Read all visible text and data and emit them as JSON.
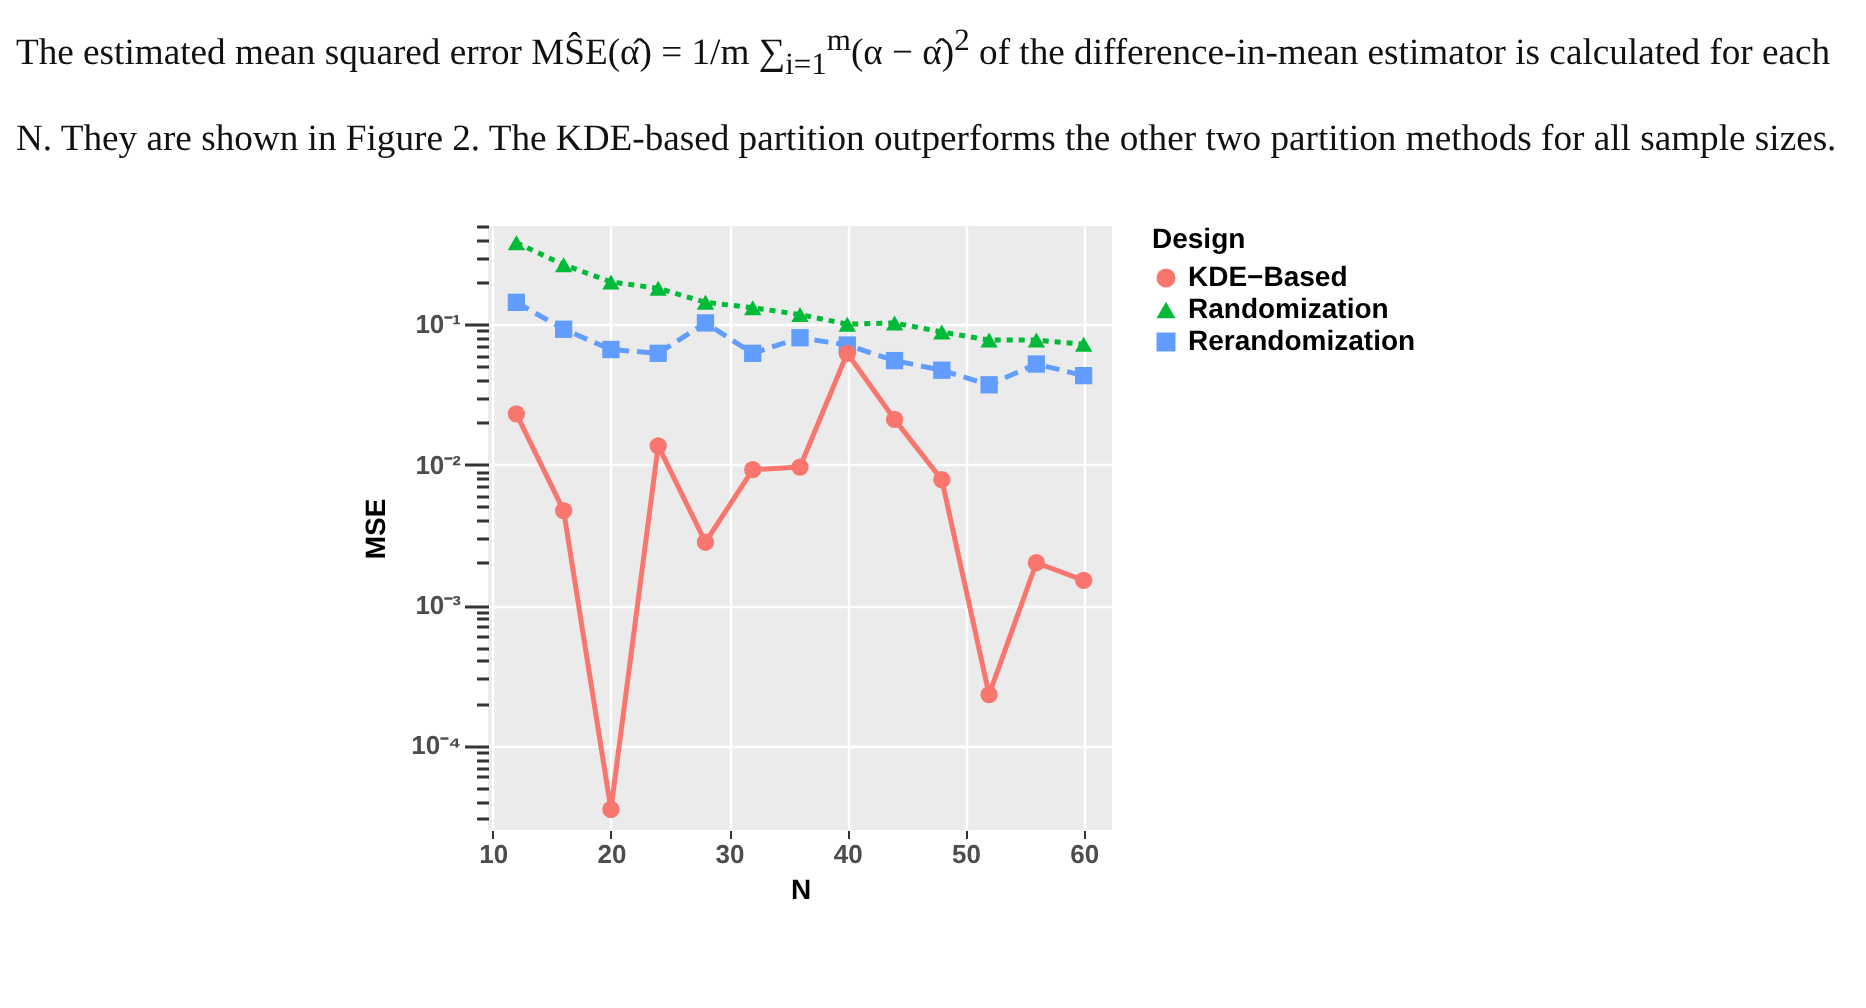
{
  "chart_data": {
    "type": "line",
    "xlabel": "N",
    "ylabel": "MSE",
    "legend_title": "Design",
    "legend": "right",
    "log": "y",
    "grid": true,
    "annotations": [
      "The estimated mean squared error MŜE(α̂) = 1/m ∑$_{i=1}$$^{m}$(α − α̂)$^{2}$ of the difference-in-mean estimator is calculated for each N. They are shown in Figure 2. The KDE-based partition outperforms the other two partition methods for all sample sizes."
    ],
    "x": [
      12,
      16,
      20,
      24,
      28,
      32,
      36,
      40,
      44,
      48,
      52,
      56,
      60
    ],
    "xlim": [
      9.6,
      62.4
    ],
    "xticks": [
      10,
      20,
      30,
      40,
      50,
      60
    ],
    "ylim": [
      2.5e-05,
      0.5
    ],
    "yticks": [
      {
        "value": 3e-05,
        "label": null
      },
      {
        "value": 4e-05,
        "label": null
      },
      {
        "value": 5e-05,
        "label": null
      },
      {
        "value": 6e-05,
        "label": null
      },
      {
        "value": 7e-05,
        "label": null
      },
      {
        "value": 8e-05,
        "label": null
      },
      {
        "value": 9e-05,
        "label": null
      },
      {
        "value": 0.0001,
        "label": "10⁻⁴"
      },
      {
        "value": 0.0002,
        "label": null
      },
      {
        "value": 0.0003,
        "label": null
      },
      {
        "value": 0.0004,
        "label": null
      },
      {
        "value": 0.0005,
        "label": null
      },
      {
        "value": 0.0006,
        "label": null
      },
      {
        "value": 0.0007,
        "label": null
      },
      {
        "value": 0.0008,
        "label": null
      },
      {
        "value": 0.0009,
        "label": null
      },
      {
        "value": 0.001,
        "label": "10⁻³"
      },
      {
        "value": 0.002,
        "label": null
      },
      {
        "value": 0.003,
        "label": null
      },
      {
        "value": 0.004,
        "label": null
      },
      {
        "value": 0.005,
        "label": null
      },
      {
        "value": 0.006,
        "label": null
      },
      {
        "value": 0.007,
        "label": null
      },
      {
        "value": 0.008,
        "label": null
      },
      {
        "value": 0.009,
        "label": null
      },
      {
        "value": 0.01,
        "label": "10⁻²"
      },
      {
        "value": 0.02,
        "label": null
      },
      {
        "value": 0.03,
        "label": null
      },
      {
        "value": 0.04,
        "label": null
      },
      {
        "value": 0.05,
        "label": null
      },
      {
        "value": 0.06,
        "label": null
      },
      {
        "value": 0.07,
        "label": null
      },
      {
        "value": 0.08,
        "label": null
      },
      {
        "value": 0.09,
        "label": null
      },
      {
        "value": 0.1,
        "label": "10⁻¹"
      },
      {
        "value": 0.2,
        "label": null
      },
      {
        "value": 0.3,
        "label": null
      },
      {
        "value": 0.4,
        "label": null
      },
      {
        "value": 0.5,
        "label": null
      }
    ],
    "series": [
      {
        "name": "KDE−Based",
        "color": "#f8766d",
        "marker": "circle",
        "line_style": "solid",
        "values": [
          0.023,
          0.0047,
          3.5e-05,
          0.0136,
          0.0028,
          0.0092,
          0.0096,
          0.062,
          0.021,
          0.0078,
          0.00023,
          0.002,
          0.0015
        ]
      },
      {
        "name": "Randomization",
        "color": "#00ba38",
        "marker": "triangle",
        "line_style": "dotted",
        "values": [
          0.38,
          0.265,
          0.2,
          0.18,
          0.143,
          0.131,
          0.117,
          0.1,
          0.102,
          0.088,
          0.077,
          0.077,
          0.072
        ]
      },
      {
        "name": "Rerandomization",
        "color": "#619cff",
        "marker": "square",
        "line_style": "dashed",
        "values": [
          0.143,
          0.092,
          0.066,
          0.062,
          0.102,
          0.062,
          0.08,
          0.071,
          0.055,
          0.047,
          0.037,
          0.052,
          0.043
        ]
      }
    ]
  }
}
